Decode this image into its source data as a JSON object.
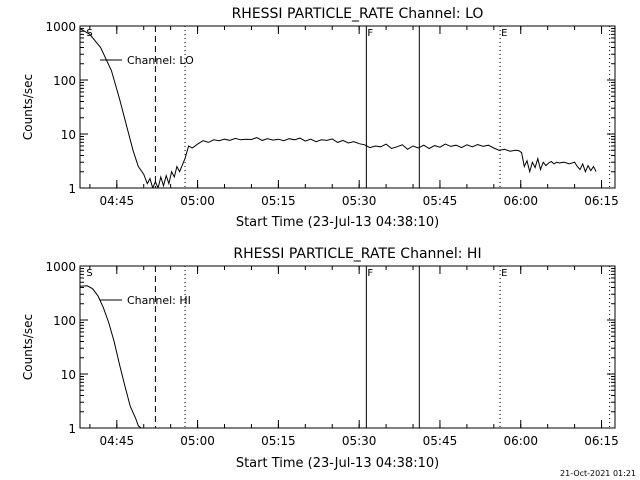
{
  "footer_date": "21-Oct-2021 01:21",
  "chart_data": [
    {
      "type": "line",
      "title": "RHESSI PARTICLE_RATE Channel: LO",
      "xlabel": "Start Time (23-Jul-13 04:38:10)",
      "ylabel": "Counts/sec",
      "yscale": "log",
      "xlim": [
        "04:38:10",
        "06:17:30"
      ],
      "ylim": [
        1,
        1000
      ],
      "x_ticks": [
        "04:45",
        "05:00",
        "05:15",
        "05:30",
        "05:45",
        "06:00",
        "06:15"
      ],
      "y_ticks": [
        1,
        10,
        100,
        1000
      ],
      "y_tick_labels": [
        "1",
        "10",
        "100",
        "1000"
      ],
      "legend": "Channel: LO",
      "legend_position": "top-left",
      "markers": [
        {
          "label": "S",
          "time": "04:39:10",
          "style": "none"
        },
        {
          "label": "",
          "time": "04:52:10",
          "style": "dashed"
        },
        {
          "label": "",
          "time": "04:57:40",
          "style": "dotted"
        },
        {
          "label": "F",
          "time": "05:31:20",
          "style": "solid"
        },
        {
          "label": "",
          "time": "05:41:10",
          "style": "solid"
        },
        {
          "label": "E",
          "time": "05:56:10",
          "style": "dotted"
        },
        {
          "label": "",
          "time": "06:16:30",
          "style": "dotted"
        }
      ],
      "series": [
        {
          "name": "Channel: LO",
          "x": [
            "04:38:10",
            "04:40:00",
            "04:42:00",
            "04:44:00",
            "04:45:30",
            "04:47:00",
            "04:48:00",
            "04:49:00",
            "04:50:00",
            "04:50:40",
            "04:51:10",
            "04:51:40",
            "04:52:10",
            "04:52:40",
            "04:53:10",
            "04:53:40",
            "04:54:10",
            "04:54:40",
            "04:55:10",
            "04:55:40",
            "04:56:10",
            "04:56:40",
            "04:57:40",
            "04:58:20",
            "04:59:00",
            "05:00:00",
            "05:01:00",
            "05:02:00",
            "05:03:00",
            "05:04:00",
            "05:05:00",
            "05:06:00",
            "05:07:00",
            "05:08:00",
            "05:09:00",
            "05:10:00",
            "05:11:00",
            "05:12:00",
            "05:13:00",
            "05:14:00",
            "05:15:00",
            "05:16:00",
            "05:17:00",
            "05:18:00",
            "05:19:00",
            "05:20:00",
            "05:21:00",
            "05:22:00",
            "05:23:00",
            "05:24:00",
            "05:25:00",
            "05:26:00",
            "05:27:00",
            "05:28:00",
            "05:29:00",
            "05:30:00",
            "05:31:00",
            "05:32:00",
            "05:33:00",
            "05:34:00",
            "05:35:00",
            "05:36:00",
            "05:37:00",
            "05:38:00",
            "05:39:00",
            "05:40:00",
            "05:41:00",
            "05:42:00",
            "05:43:00",
            "05:44:00",
            "05:45:00",
            "05:46:00",
            "05:47:00",
            "05:48:00",
            "05:49:00",
            "05:50:00",
            "05:51:00",
            "05:52:00",
            "05:53:00",
            "05:54:00",
            "05:55:00",
            "05:56:00",
            "05:57:00",
            "05:58:00",
            "05:59:00",
            "05:59:40",
            "06:00:10",
            "06:00:40",
            "06:01:10",
            "06:01:40",
            "06:02:10",
            "06:02:40",
            "06:03:10",
            "06:03:40",
            "06:04:10",
            "06:04:40",
            "06:05:10",
            "06:05:40",
            "06:06:10",
            "06:06:40",
            "06:07:10",
            "06:08:00",
            "06:09:00",
            "06:10:00",
            "06:10:30",
            "06:11:00",
            "06:11:30",
            "06:12:00",
            "06:12:30",
            "06:13:00",
            "06:13:30",
            "06:14:00"
          ],
          "y": [
            900,
            700,
            400,
            150,
            45,
            12,
            5,
            2.5,
            1.8,
            1.2,
            1.5,
            1.0,
            1.3,
            1.0,
            1.6,
            1.1,
            1.7,
            1.2,
            2.0,
            1.6,
            2.5,
            2.0,
            3.5,
            6.0,
            5.5,
            6.5,
            7.5,
            7.0,
            7.8,
            7.5,
            8.0,
            7.6,
            8.3,
            7.8,
            8.0,
            7.9,
            8.6,
            7.6,
            8.2,
            7.7,
            8.0,
            7.5,
            8.2,
            7.8,
            8.4,
            7.4,
            8.0,
            7.2,
            7.8,
            7.6,
            8.1,
            7.0,
            7.6,
            6.8,
            7.2,
            6.6,
            6.3,
            5.6,
            6.0,
            5.8,
            6.5,
            5.4,
            5.8,
            6.3,
            5.2,
            6.0,
            5.5,
            6.2,
            5.4,
            6.1,
            5.7,
            6.5,
            5.9,
            6.2,
            5.6,
            6.3,
            5.8,
            6.4,
            5.9,
            6.2,
            5.5,
            5.0,
            5.2,
            4.8,
            5.0,
            4.9,
            4.5,
            2.5,
            3.2,
            2.0,
            3.0,
            2.4,
            3.5,
            2.2,
            3.0,
            2.6,
            2.9,
            3.1,
            2.8,
            3.0,
            2.9,
            3.0,
            2.8,
            3.0,
            2.5,
            2.2,
            2.8,
            2.0,
            2.6,
            2.1,
            2.5,
            2.0
          ]
        }
      ]
    },
    {
      "type": "line",
      "title": "RHESSI PARTICLE_RATE Channel: HI",
      "xlabel": "Start Time (23-Jul-13 04:38:10)",
      "ylabel": "Counts/sec",
      "yscale": "log",
      "xlim": [
        "04:38:10",
        "06:17:30"
      ],
      "ylim": [
        1,
        1000
      ],
      "x_ticks": [
        "04:45",
        "05:00",
        "05:15",
        "05:30",
        "05:45",
        "06:00",
        "06:15"
      ],
      "y_ticks": [
        1,
        10,
        100,
        1000
      ],
      "y_tick_labels": [
        "1",
        "10",
        "100",
        "1000"
      ],
      "legend": "Channel: HI",
      "legend_position": "top-left",
      "markers": [
        {
          "label": "S",
          "time": "04:39:10",
          "style": "none"
        },
        {
          "label": "",
          "time": "04:52:10",
          "style": "dashed"
        },
        {
          "label": "",
          "time": "04:57:40",
          "style": "dotted"
        },
        {
          "label": "F",
          "time": "05:31:20",
          "style": "solid"
        },
        {
          "label": "",
          "time": "05:41:10",
          "style": "solid"
        },
        {
          "label": "E",
          "time": "05:56:10",
          "style": "dotted"
        },
        {
          "label": "",
          "time": "06:16:30",
          "style": "dotted"
        }
      ],
      "series": [
        {
          "name": "Channel: HI",
          "x": [
            "04:38:10",
            "04:39:30",
            "04:40:30",
            "04:41:30",
            "04:42:30",
            "04:43:30",
            "04:44:30",
            "04:45:30",
            "04:46:30",
            "04:47:30",
            "04:48:30",
            "04:49:00",
            "04:49:30"
          ],
          "y": [
            420,
            430,
            380,
            280,
            170,
            90,
            40,
            15,
            6,
            2.5,
            1.5,
            1.1,
            1.0
          ]
        }
      ]
    }
  ]
}
